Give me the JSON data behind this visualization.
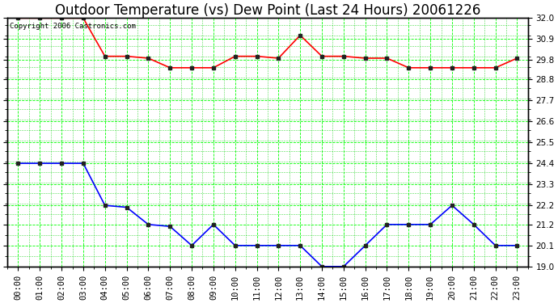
{
  "title": "Outdoor Temperature (vs) Dew Point (Last 24 Hours) 20061226",
  "copyright_text": "Copyright 2006 Castronics.com",
  "x_labels": [
    "00:00",
    "01:00",
    "02:00",
    "03:00",
    "04:00",
    "05:00",
    "06:00",
    "07:00",
    "08:00",
    "09:00",
    "10:00",
    "11:00",
    "12:00",
    "13:00",
    "14:00",
    "15:00",
    "16:00",
    "17:00",
    "18:00",
    "19:00",
    "20:00",
    "21:00",
    "22:00",
    "23:00"
  ],
  "temp_data": [
    32.0,
    32.0,
    32.0,
    32.0,
    30.0,
    30.0,
    29.9,
    29.4,
    29.4,
    29.4,
    30.0,
    30.0,
    29.9,
    31.1,
    30.0,
    30.0,
    29.9,
    29.9,
    29.4,
    29.4,
    29.4,
    29.4,
    29.4,
    29.9
  ],
  "dew_data": [
    24.4,
    24.4,
    24.4,
    24.4,
    22.2,
    22.1,
    21.2,
    21.1,
    20.1,
    21.2,
    20.1,
    20.1,
    20.1,
    20.1,
    19.0,
    19.0,
    20.1,
    21.2,
    21.2,
    21.2,
    22.2,
    21.2,
    20.1,
    20.1
  ],
  "temp_color": "#ff0000",
  "dew_color": "#0000ff",
  "bg_color": "#ffffff",
  "plot_bg_color": "#ffffff",
  "grid_major_color": "#00ff00",
  "grid_minor_color": "#00cc00",
  "ylim_min": 19.0,
  "ylim_max": 32.0,
  "yticks": [
    19.0,
    20.1,
    21.2,
    22.2,
    23.3,
    24.4,
    25.5,
    26.6,
    27.7,
    28.8,
    29.8,
    30.9,
    32.0
  ],
  "title_fontsize": 12,
  "tick_fontsize": 7.5,
  "copyright_fontsize": 6.5,
  "marker": "s",
  "marker_size": 3,
  "linewidth": 1.2,
  "border_color": "#000000"
}
